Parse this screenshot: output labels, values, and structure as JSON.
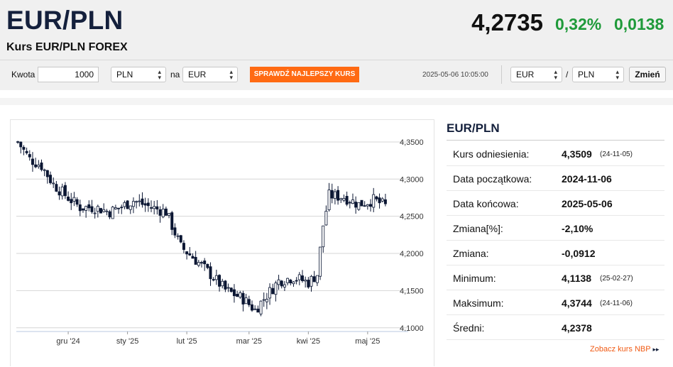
{
  "header": {
    "title": "EUR/PLN",
    "subtitle": "Kurs EUR/PLN FOREX",
    "rate": "4,2735",
    "change_pct": "0,32%",
    "change_abs": "0,0138",
    "up_color": "#1f9a3a"
  },
  "converter": {
    "amount_label": "Kwota",
    "amount_value": "1000",
    "from_currency": "PLN",
    "na_label": "na",
    "to_currency": "EUR",
    "best_rate_button": "SPRAWDŹ NAJLEPSZY KURS",
    "accent": "#ff6a13"
  },
  "timestamp": "2025-05-06 10:05:00",
  "pair_switch": {
    "base": "EUR",
    "slash": "/",
    "quote": "PLN",
    "button": "Zmień"
  },
  "chart_data": {
    "type": "candlestick",
    "xlabel": "",
    "ylabel": "",
    "ylim": [
      4.095,
      4.37
    ],
    "y_ticks": [
      "4,3500",
      "4,3000",
      "4,2500",
      "4,2000",
      "4,1500",
      "4,1000"
    ],
    "y_tick_values": [
      4.35,
      4.3,
      4.25,
      4.2,
      4.15,
      4.1
    ],
    "x_ticks": [
      "gru '24",
      "sty '25",
      "lut '25",
      "mar '25",
      "kwi '25",
      "maj '25"
    ],
    "x_tick_positions": [
      17,
      37,
      57,
      78,
      98,
      118
    ],
    "n_sessions": 125,
    "grid": "horizontal",
    "trend_points": [
      [
        0,
        4.35
      ],
      [
        4,
        4.327
      ],
      [
        8,
        4.318
      ],
      [
        12,
        4.293
      ],
      [
        17,
        4.275
      ],
      [
        21,
        4.262
      ],
      [
        26,
        4.262
      ],
      [
        31,
        4.256
      ],
      [
        35,
        4.263
      ],
      [
        39,
        4.271
      ],
      [
        45,
        4.262
      ],
      [
        50,
        4.256
      ],
      [
        55,
        4.209
      ],
      [
        59,
        4.195
      ],
      [
        64,
        4.176
      ],
      [
        70,
        4.151
      ],
      [
        76,
        4.139
      ],
      [
        80,
        4.124
      ],
      [
        83,
        4.139
      ],
      [
        88,
        4.163
      ],
      [
        93,
        4.168
      ],
      [
        98,
        4.161
      ],
      [
        101,
        4.172
      ],
      [
        103,
        4.238
      ],
      [
        105,
        4.278
      ],
      [
        110,
        4.276
      ],
      [
        115,
        4.266
      ],
      [
        120,
        4.272
      ],
      [
        124,
        4.264
      ]
    ],
    "up_color": "#ffffff",
    "down_color": "#0b1633"
  },
  "summary": {
    "title": "EUR/PLN",
    "rows": [
      {
        "label": "Kurs odniesienia:",
        "value": "4,3509",
        "date": "(24-11-05)"
      },
      {
        "label": "Data początkowa:",
        "value": "2024-11-06",
        "date": ""
      },
      {
        "label": "Data końcowa:",
        "value": "2025-05-06",
        "date": ""
      },
      {
        "label": "Zmiana[%]:",
        "value": "-2,10%",
        "date": ""
      },
      {
        "label": "Zmiana:",
        "value": "-0,0912",
        "date": ""
      },
      {
        "label": "Minimum:",
        "value": "4,1138",
        "date": "(25-02-27)"
      },
      {
        "label": "Maksimum:",
        "value": "4,3744",
        "date": "(24-11-06)"
      },
      {
        "label": "Średni:",
        "value": "4,2378",
        "date": ""
      }
    ],
    "nbp_link": "Zobacz kurs NBP",
    "nbp_arrows": "▸▸"
  }
}
